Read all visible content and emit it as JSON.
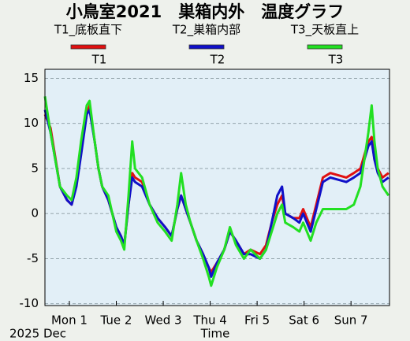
{
  "chart_data": {
    "type": "line",
    "title": "小鳥室2021　巣箱内外　温度グラフ",
    "xlabel": "Time",
    "date_label": "2025 Dec",
    "x": [
      0.48,
      0.6,
      0.8,
      0.95,
      1.05,
      1.15,
      1.25,
      1.37,
      1.43,
      1.54,
      1.62,
      1.7,
      1.83,
      2.0,
      2.1,
      2.17,
      2.26,
      2.34,
      2.4,
      2.55,
      2.71,
      2.88,
      3.04,
      3.18,
      3.3,
      3.38,
      3.48,
      3.58,
      3.71,
      3.85,
      3.97,
      4.02,
      4.14,
      4.3,
      4.42,
      4.55,
      4.72,
      4.86,
      5.06,
      5.19,
      5.31,
      5.43,
      5.53,
      5.6,
      5.77,
      5.9,
      5.98,
      6.14,
      6.26,
      6.4,
      6.56,
      6.9,
      7.06,
      7.2,
      7.37,
      7.44,
      7.5,
      7.57,
      7.67,
      7.8
    ],
    "series": [
      {
        "name": "T1",
        "description": "T1_底板直下",
        "color": "#e01010",
        "values": [
          11,
          9.5,
          3,
          1.5,
          1,
          3.5,
          7,
          11,
          12,
          8,
          5,
          3,
          1.5,
          -1.5,
          -2.5,
          -3.5,
          1,
          4.5,
          4,
          3.5,
          1,
          -0.5,
          -1.5,
          -2.5,
          0.5,
          2,
          0.5,
          -1,
          -3,
          -4.5,
          -6,
          -6.5,
          -5.5,
          -4,
          -2,
          -3,
          -4.5,
          -4,
          -4.5,
          -3.5,
          -1,
          1,
          2,
          0,
          -0.5,
          -0.5,
          0.5,
          -1.5,
          1,
          4,
          4.5,
          4,
          4.5,
          5,
          8,
          8.5,
          6,
          5,
          4,
          4.5
        ]
      },
      {
        "name": "T2",
        "description": "T2_巣箱内部",
        "color": "#1010c8",
        "values": [
          11.5,
          9,
          3,
          1.5,
          1,
          3,
          6.5,
          11,
          11.5,
          8,
          5,
          3,
          1.5,
          -1.5,
          -2.5,
          -3.5,
          1,
          4,
          3.5,
          3,
          1,
          -0.5,
          -1.5,
          -2.5,
          0.5,
          2,
          0.5,
          -1,
          -3,
          -4.5,
          -6,
          -7,
          -5.5,
          -4,
          -2,
          -3,
          -4.5,
          -4.5,
          -5,
          -4,
          -1,
          2,
          3,
          0,
          -0.5,
          -1,
          0,
          -2,
          0.5,
          3.5,
          4,
          3.5,
          4,
          4.5,
          7.5,
          8,
          6,
          4.5,
          3.5,
          4
        ]
      },
      {
        "name": "T3",
        "description": "T3_天板直上",
        "color": "#22e022",
        "values": [
          13,
          9,
          3,
          2,
          1.5,
          4,
          8,
          12,
          12.5,
          8,
          5,
          3,
          2,
          -2,
          -3,
          -4,
          2,
          8,
          5,
          4,
          1,
          -1,
          -2,
          -3,
          1,
          4.5,
          1,
          -1,
          -3,
          -5,
          -7,
          -8,
          -6,
          -4,
          -1.5,
          -3.5,
          -5,
          -4,
          -5,
          -4,
          -2,
          0,
          1,
          -1,
          -1.5,
          -2,
          -1,
          -3,
          -1,
          0.5,
          0.5,
          0.5,
          1,
          3,
          9,
          12,
          8,
          5,
          3,
          2
        ]
      }
    ],
    "xlim": [
      0.48,
      7.82
    ],
    "xticks": [
      {
        "value": 1,
        "label": "Mon 1"
      },
      {
        "value": 2,
        "label": "Tue 2"
      },
      {
        "value": 3,
        "label": "Wed 3"
      },
      {
        "value": 4,
        "label": "Thu 4"
      },
      {
        "value": 5,
        "label": "Fri 5"
      },
      {
        "value": 6,
        "label": "Sat 6"
      },
      {
        "value": 7,
        "label": "Sun 7"
      }
    ],
    "ylim": [
      -10.2,
      16
    ],
    "yticks": [
      15,
      10,
      5,
      0,
      -5,
      -10
    ],
    "grid": true
  }
}
